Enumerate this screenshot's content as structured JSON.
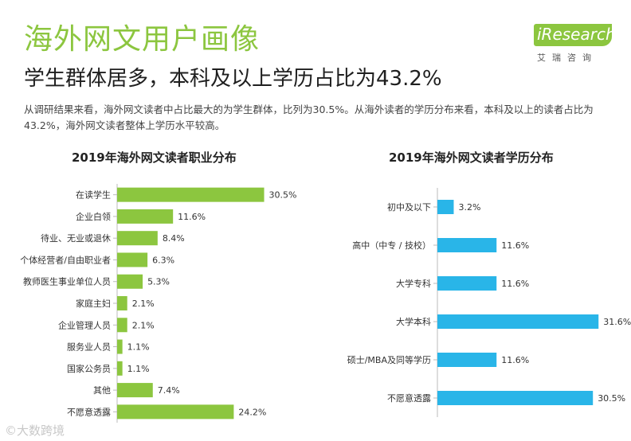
{
  "header": {
    "title": "海外网文用户画像",
    "subtitle": "学生群体居多，本科及以上学历占比为43.2%",
    "description": "从调研结果来看，海外网文读者中占比最大的为学生群体，比列为30.5%。从海外读者的学历分布来看，本科及以上的读者占比为43.2%，海外网文读者整体上学历水平较高。"
  },
  "logo": {
    "text": "iResearch",
    "subtext": "艾瑞咨询"
  },
  "watermark": "©大数跨境",
  "colors": {
    "title_green": "#8cc63f",
    "bar_green": "#8cc63f",
    "bar_blue": "#29b5e8"
  },
  "chart_data": [
    {
      "type": "bar",
      "orientation": "horizontal",
      "title": "2019年海外网文读者职业分布",
      "categories": [
        "在读学生",
        "企业白领",
        "待业、无业或退休",
        "个体经营者/自由职业者",
        "教师医生事业单位人员",
        "家庭主妇",
        "企业管理人员",
        "服务业人员",
        "国家公务员",
        "其他",
        "不愿意透露"
      ],
      "values": [
        30.5,
        11.6,
        8.4,
        6.3,
        5.3,
        2.1,
        2.1,
        1.1,
        1.1,
        7.4,
        24.2
      ],
      "labels": [
        "30.5%",
        "11.6%",
        "8.4%",
        "6.3%",
        "5.3%",
        "2.1%",
        "2.1%",
        "1.1%",
        "1.1%",
        "7.4%",
        "24.2%"
      ],
      "unit": "%",
      "color": "#8cc63f"
    },
    {
      "type": "bar",
      "orientation": "horizontal",
      "title": "2019年海外网文读者学历分布",
      "categories": [
        "初中及以下",
        "高中（中专 / 技校）",
        "大学专科",
        "大学本科",
        "硕士/MBA及同等学历",
        "不愿意透露"
      ],
      "values": [
        3.2,
        11.6,
        11.6,
        31.6,
        11.6,
        30.5
      ],
      "labels": [
        "3.2%",
        "11.6%",
        "11.6%",
        "31.6%",
        "11.6%",
        "30.5%"
      ],
      "unit": "%",
      "color": "#29b5e8"
    }
  ]
}
